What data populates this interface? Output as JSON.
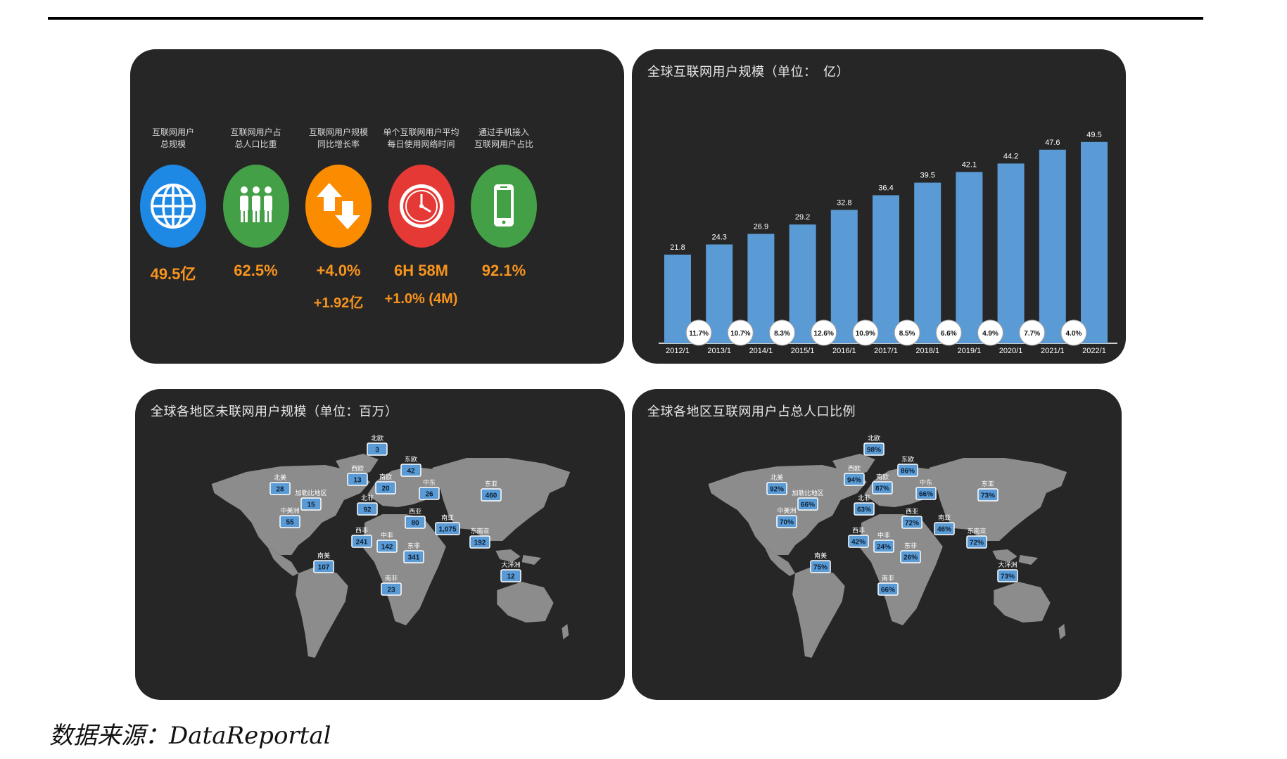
{
  "kpis": [
    {
      "label": "互联网用户\n总规模",
      "value": "49.5亿",
      "sub": "",
      "color": "#1e88e5",
      "icon": "globe-icon"
    },
    {
      "label": "互联网用户占\n总人口比重",
      "value": "62.5%",
      "sub": "",
      "color": "#43a047",
      "icon": "people-icon"
    },
    {
      "label": "互联网用户规模\n同比增长率",
      "value": "+4.0%",
      "sub": "+1.92亿",
      "color": "#fb8c00",
      "icon": "up-down-arrows-icon"
    },
    {
      "label": "单个互联网用户平均\n每日使用网络时间",
      "value": "6H 58M",
      "sub": "+1.0% (4M)",
      "color": "#e53935",
      "icon": "clock-icon"
    },
    {
      "label": "通过手机接入\n互联网用户占比",
      "value": "92.1%",
      "sub": "",
      "color": "#43a047",
      "icon": "mobile-phone-icon"
    }
  ],
  "chart_data": [
    {
      "type": "bar",
      "title": "全球互联网用户规模（单位：　亿）",
      "categories": [
        "2012/1",
        "2013/1",
        "2014/1",
        "2015/1",
        "2016/1",
        "2017/1",
        "2018/1",
        "2019/1",
        "2020/1",
        "2021/1",
        "2022/1"
      ],
      "values": [
        21.8,
        24.3,
        26.9,
        29.2,
        32.8,
        36.4,
        39.5,
        42.1,
        44.2,
        47.6,
        49.5
      ],
      "growth_labels": [
        "11.7%",
        "10.7%",
        "8.3%",
        "12.6%",
        "10.9%",
        "8.5%",
        "6.6%",
        "4.9%",
        "7.7%",
        "4.0%"
      ],
      "ylim": [
        0,
        55
      ],
      "color": "#5b9bd5"
    },
    {
      "type": "map",
      "title": "全球各地区未联网用户规模（单位：百万）",
      "regions": [
        {
          "name": "北美",
          "value": "28"
        },
        {
          "name": "加勒比地区",
          "value": "15"
        },
        {
          "name": "中美洲",
          "value": "55"
        },
        {
          "name": "南美",
          "value": "107"
        },
        {
          "name": "北欧",
          "value": "3"
        },
        {
          "name": "西欧",
          "value": "13"
        },
        {
          "name": "南欧",
          "value": "20"
        },
        {
          "name": "东欧",
          "value": "42"
        },
        {
          "name": "北非",
          "value": "92"
        },
        {
          "name": "西非",
          "value": "241"
        },
        {
          "name": "中非",
          "value": "142"
        },
        {
          "name": "东非",
          "value": "341"
        },
        {
          "name": "南非",
          "value": "23"
        },
        {
          "name": "中东",
          "value": "26"
        },
        {
          "name": "西亚",
          "value": "80"
        },
        {
          "name": "南亚",
          "value": "1,075"
        },
        {
          "name": "东亚",
          "value": "460"
        },
        {
          "name": "东南亚",
          "value": "192"
        },
        {
          "name": "大洋洲",
          "value": "12"
        }
      ]
    },
    {
      "type": "map",
      "title": "全球各地区互联网用户占总人口比例",
      "regions": [
        {
          "name": "北美",
          "value": "92%"
        },
        {
          "name": "加勒比地区",
          "value": "66%"
        },
        {
          "name": "中美洲",
          "value": "70%"
        },
        {
          "name": "南美",
          "value": "75%"
        },
        {
          "name": "北欧",
          "value": "98%"
        },
        {
          "name": "西欧",
          "value": "94%"
        },
        {
          "name": "南欧",
          "value": "87%"
        },
        {
          "name": "东欧",
          "value": "86%"
        },
        {
          "name": "北非",
          "value": "63%"
        },
        {
          "name": "西非",
          "value": "42%"
        },
        {
          "name": "中非",
          "value": "24%"
        },
        {
          "name": "东非",
          "value": "26%"
        },
        {
          "name": "南非",
          "value": "66%"
        },
        {
          "name": "中东",
          "value": "66%"
        },
        {
          "name": "西亚",
          "value": "72%"
        },
        {
          "name": "南亚",
          "value": "46%"
        },
        {
          "name": "东亚",
          "value": "73%"
        },
        {
          "name": "东南亚",
          "value": "72%"
        },
        {
          "name": "大洋洲",
          "value": "73%"
        }
      ]
    }
  ],
  "source": "数据来源：DataReportal"
}
